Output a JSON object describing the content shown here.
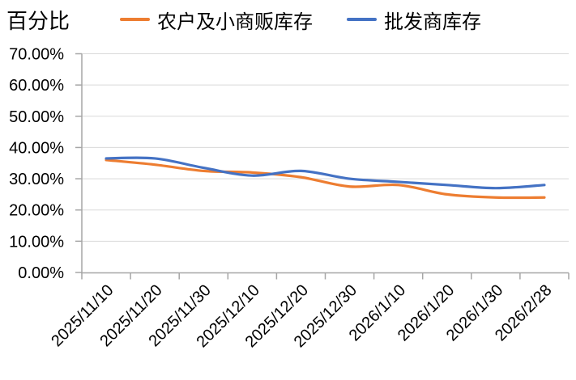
{
  "y_axis_title": "百分比",
  "colors": {
    "series_farmers": "#ED7D31",
    "series_wholesalers": "#4472C4",
    "gridline": "#D9D9D9",
    "axis": "#A6A6A6",
    "text": "#000000"
  },
  "chart_data": {
    "type": "line",
    "smoothed": true,
    "ylabel": "百分比",
    "ylim": [
      0,
      70
    ],
    "y_tick_step": 10,
    "y_tick_labels": [
      "0.00%",
      "10.00%",
      "20.00%",
      "30.00%",
      "40.00%",
      "50.00%",
      "60.00%",
      "70.00%"
    ],
    "grid": true,
    "legend_position": "top",
    "x_label_rotation": -45,
    "categories": [
      "2025/11/10",
      "2025/11/20",
      "2025/11/30",
      "2025/12/10",
      "2025/12/20",
      "2025/12/30",
      "2026/1/10",
      "2026/1/20",
      "2026/1/30",
      "2026/2/28"
    ],
    "series": [
      {
        "name": "农户及小商贩库存",
        "color": "#ED7D31",
        "values": [
          36,
          34.5,
          32.5,
          32,
          30.5,
          27.5,
          28,
          25,
          24,
          24
        ]
      },
      {
        "name": "批发商库存",
        "color": "#4472C4",
        "values": [
          36.5,
          36.5,
          33.5,
          31,
          32.5,
          30,
          29,
          28,
          27,
          28
        ]
      }
    ]
  }
}
